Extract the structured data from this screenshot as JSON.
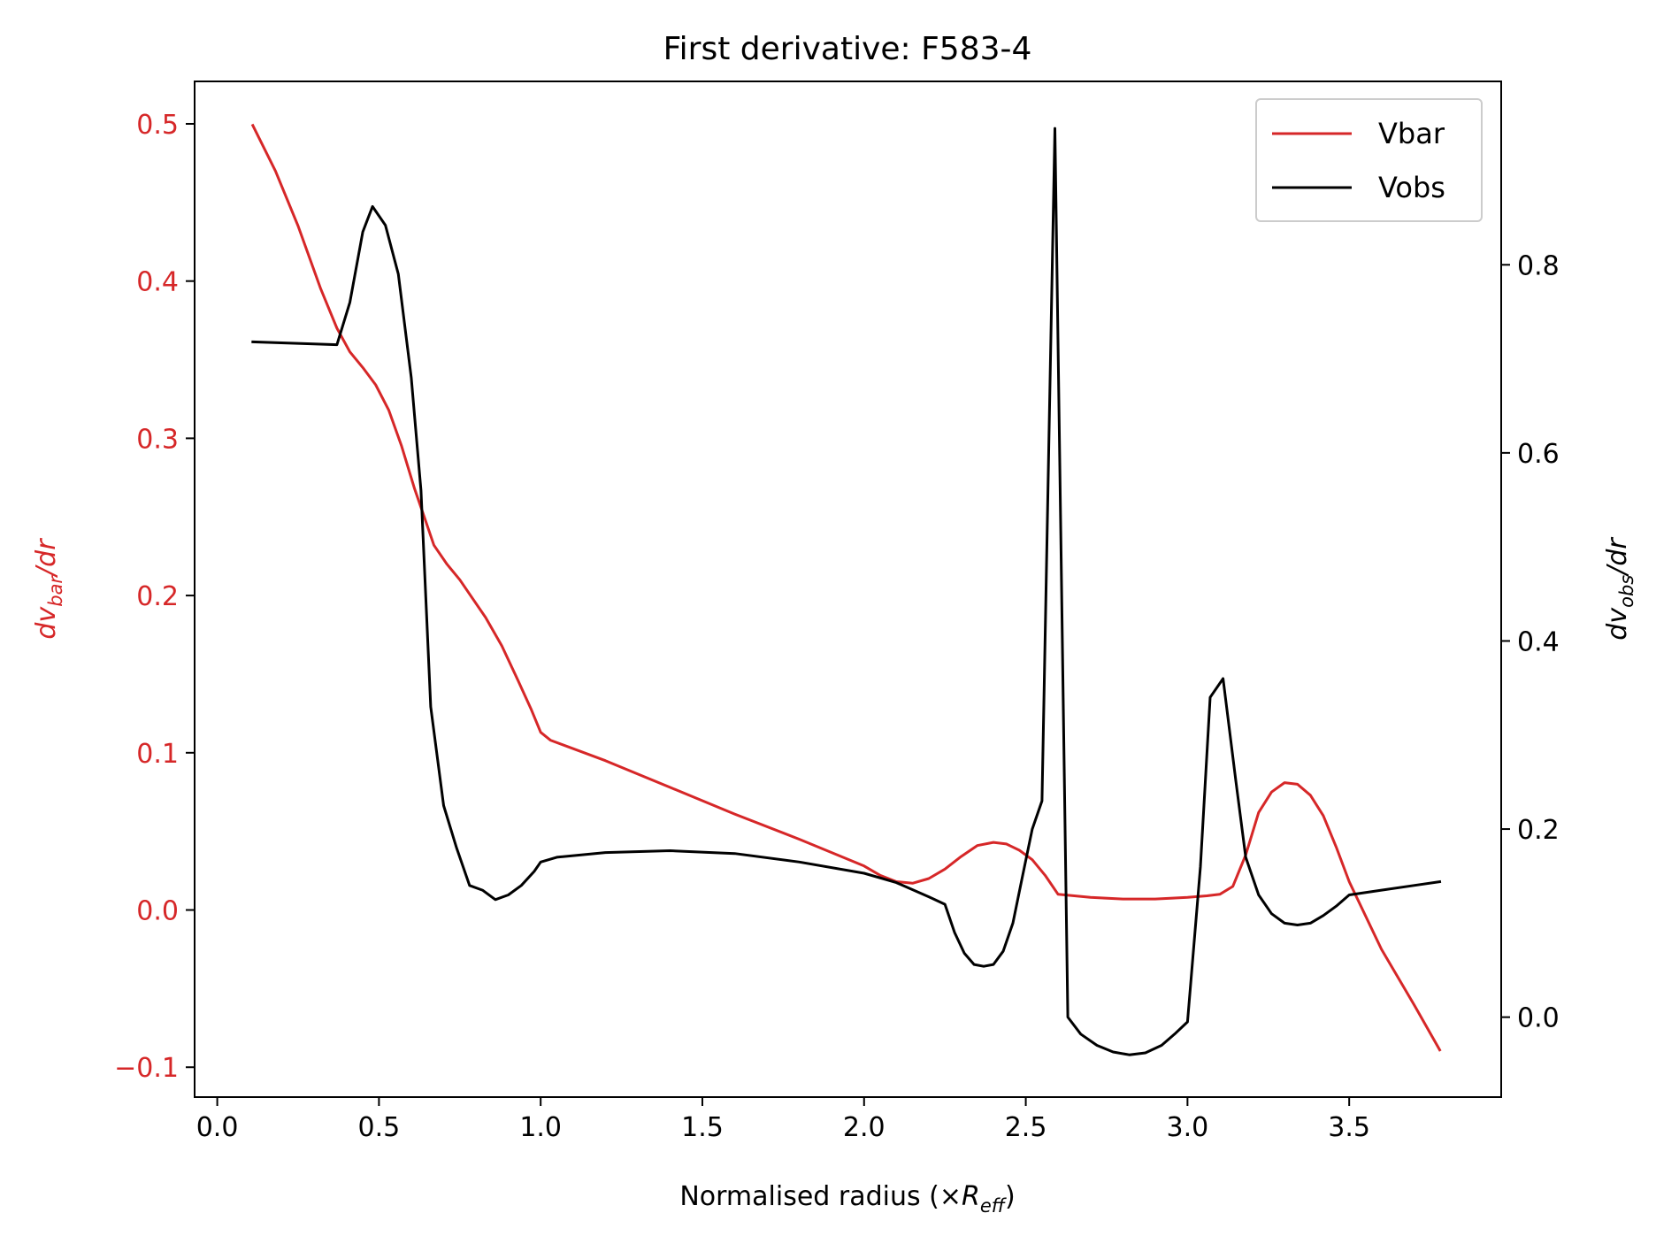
{
  "chart_data": {
    "type": "line",
    "title": "First derivative: F583-4",
    "xlabel": {
      "prefix": "Normalised radius (×",
      "var": "R",
      "sub": "eff",
      "suffix": ")"
    },
    "ylabel_left": {
      "var": "dv",
      "sub": "bar",
      "suffix": "/dr"
    },
    "ylabel_right": {
      "var": "dv",
      "sub": "obs",
      "suffix": "/dr"
    },
    "xlim": [
      -0.07,
      3.97
    ],
    "ylim_left": [
      -0.119,
      0.527
    ],
    "ylim_right": [
      -0.085,
      0.995
    ],
    "x_ticks": [
      "0.0",
      "0.5",
      "1.0",
      "1.5",
      "2.0",
      "2.5",
      "3.0",
      "3.5"
    ],
    "y_left_ticks": [
      "−0.1",
      "0.0",
      "0.1",
      "0.2",
      "0.3",
      "0.4",
      "0.5"
    ],
    "y_right_ticks": [
      "0.0",
      "0.2",
      "0.4",
      "0.6",
      "0.8"
    ],
    "legend_position": "upper right",
    "colors": {
      "vbar": "#d62728",
      "vobs": "#000000"
    },
    "series": [
      {
        "name": "Vbar",
        "axis": "left",
        "x": [
          0.11,
          0.18,
          0.25,
          0.32,
          0.37,
          0.41,
          0.45,
          0.49,
          0.53,
          0.57,
          0.61,
          0.64,
          0.67,
          0.71,
          0.75,
          0.79,
          0.83,
          0.88,
          0.93,
          0.97,
          1.0,
          1.03,
          1.2,
          1.4,
          1.6,
          1.8,
          2.0,
          2.05,
          2.1,
          2.15,
          2.2,
          2.25,
          2.3,
          2.35,
          2.4,
          2.44,
          2.48,
          2.52,
          2.56,
          2.6,
          2.7,
          2.8,
          2.9,
          3.0,
          3.06,
          3.1,
          3.14,
          3.18,
          3.22,
          3.26,
          3.3,
          3.34,
          3.38,
          3.42,
          3.46,
          3.5,
          3.6,
          3.7,
          3.78
        ],
        "y": [
          0.499,
          0.47,
          0.435,
          0.395,
          0.37,
          0.355,
          0.345,
          0.334,
          0.318,
          0.295,
          0.268,
          0.25,
          0.232,
          0.22,
          0.21,
          0.198,
          0.186,
          0.168,
          0.146,
          0.128,
          0.113,
          0.108,
          0.095,
          0.078,
          0.061,
          0.045,
          0.028,
          0.022,
          0.018,
          0.017,
          0.02,
          0.026,
          0.034,
          0.041,
          0.043,
          0.042,
          0.038,
          0.032,
          0.022,
          0.01,
          0.008,
          0.007,
          0.007,
          0.008,
          0.009,
          0.01,
          0.015,
          0.035,
          0.062,
          0.075,
          0.081,
          0.08,
          0.073,
          0.06,
          0.04,
          0.018,
          -0.025,
          -0.06,
          -0.089
        ]
      },
      {
        "name": "Vobs",
        "axis": "right",
        "x": [
          0.11,
          0.37,
          0.41,
          0.45,
          0.48,
          0.52,
          0.56,
          0.6,
          0.63,
          0.66,
          0.7,
          0.74,
          0.78,
          0.82,
          0.86,
          0.9,
          0.94,
          0.98,
          1.0,
          1.05,
          1.2,
          1.4,
          1.6,
          1.8,
          2.0,
          2.1,
          2.2,
          2.25,
          2.28,
          2.31,
          2.34,
          2.37,
          2.4,
          2.43,
          2.46,
          2.49,
          2.52,
          2.55,
          2.59,
          2.63,
          2.67,
          2.72,
          2.77,
          2.82,
          2.87,
          2.92,
          2.96,
          3.0,
          3.04,
          3.07,
          3.11,
          3.15,
          3.18,
          3.22,
          3.26,
          3.3,
          3.34,
          3.38,
          3.42,
          3.46,
          3.5,
          3.6,
          3.7,
          3.78
        ],
        "y": [
          0.718,
          0.715,
          0.76,
          0.835,
          0.862,
          0.842,
          0.79,
          0.68,
          0.56,
          0.33,
          0.225,
          0.18,
          0.14,
          0.135,
          0.125,
          0.13,
          0.14,
          0.155,
          0.165,
          0.17,
          0.175,
          0.177,
          0.174,
          0.165,
          0.153,
          0.143,
          0.128,
          0.12,
          0.09,
          0.068,
          0.056,
          0.054,
          0.056,
          0.07,
          0.1,
          0.15,
          0.2,
          0.23,
          0.945,
          0.0,
          -0.018,
          -0.03,
          -0.037,
          -0.04,
          -0.038,
          -0.03,
          -0.018,
          -0.005,
          0.16,
          0.34,
          0.36,
          0.25,
          0.17,
          0.13,
          0.11,
          0.1,
          0.098,
          0.1,
          0.108,
          0.118,
          0.13,
          0.135,
          0.14,
          0.144
        ]
      }
    ]
  }
}
